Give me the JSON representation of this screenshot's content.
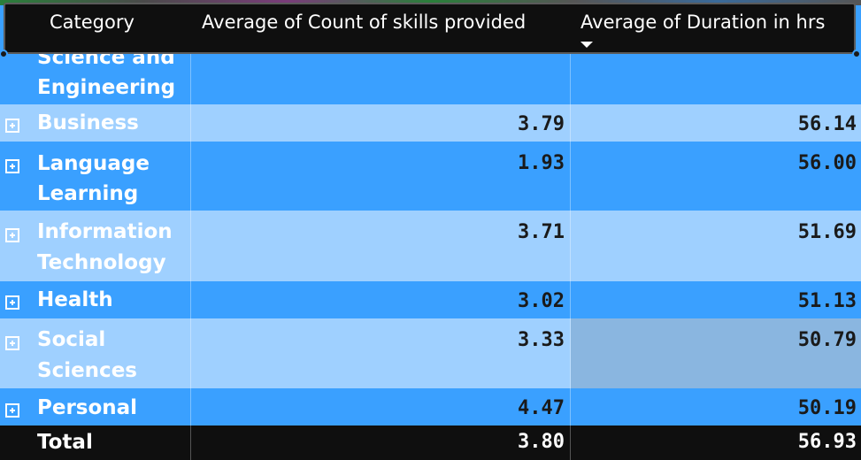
{
  "header": {
    "col_category": "Category",
    "col_skills": "Average of Count of skills provided",
    "col_duration": "Average of Duration in hrs"
  },
  "rows": [
    {
      "category_lines": [
        "Science and",
        "Engineering"
      ],
      "skills": "",
      "duration": ""
    },
    {
      "category_lines": [
        "Business"
      ],
      "skills": "3.79",
      "duration": "56.14"
    },
    {
      "category_lines": [
        "Language",
        "Learning"
      ],
      "skills": "1.93",
      "duration": "56.00"
    },
    {
      "category_lines": [
        "Information",
        "Technology"
      ],
      "skills": "3.71",
      "duration": "51.69"
    },
    {
      "category_lines": [
        "Health"
      ],
      "skills": "3.02",
      "duration": "51.13"
    },
    {
      "category_lines": [
        "Social",
        "Sciences"
      ],
      "skills": "3.33",
      "duration": "50.79"
    },
    {
      "category_lines": [
        "Personal"
      ],
      "skills": "4.47",
      "duration": "50.19"
    }
  ],
  "total": {
    "label": "Total",
    "skills": "3.80",
    "duration": "56.93"
  },
  "colors": {
    "row_dark": "#3aa0ff",
    "row_light": "#9fd0ff",
    "header_bg": "#0f0f0f",
    "selected_cell": "#8ab6e0"
  }
}
